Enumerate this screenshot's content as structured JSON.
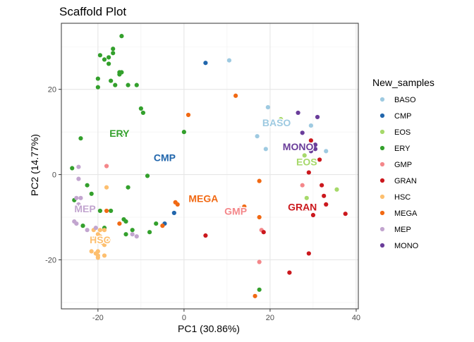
{
  "chart_data": {
    "type": "scatter",
    "title": "Scaffold Plot",
    "xlabel": "PC1 (30.86%)",
    "ylabel": "PC2 (14.77%)",
    "xlim": [
      -28.5,
      40.5
    ],
    "ylim": [
      -31.5,
      35.5
    ],
    "x_ticks": [
      -20,
      0,
      20,
      40
    ],
    "y_ticks": [
      -20,
      0,
      20
    ],
    "grid": true,
    "legend_title": "New_samples",
    "legend_position": "right",
    "series": [
      {
        "name": "BASO",
        "color": "#9ECAE1",
        "label_pos": [
          21.5,
          12
        ],
        "points": [
          [
            10.5,
            26.8
          ],
          [
            19.5,
            15.8
          ],
          [
            29.5,
            11.5
          ],
          [
            17,
            9
          ],
          [
            19,
            6
          ],
          [
            33,
            5.5
          ]
        ]
      },
      {
        "name": "CMP",
        "color": "#2166AC",
        "label_pos": [
          -4.5,
          3.8
        ],
        "points": [
          [
            5,
            26.2
          ],
          [
            -2.3,
            -9
          ],
          [
            -4.5,
            -11.5
          ]
        ]
      },
      {
        "name": "EOS",
        "color": "#A6D96A",
        "label_pos": [
          28.5,
          2.8
        ],
        "points": [
          [
            22.5,
            13
          ],
          [
            28,
            4.5
          ],
          [
            35.5,
            -3.5
          ],
          [
            28.5,
            -5.5
          ]
        ]
      },
      {
        "name": "ERY",
        "color": "#33A02C",
        "label_pos": [
          -15,
          9.5
        ],
        "points": [
          [
            -14.5,
            32.5
          ],
          [
            -16.5,
            29.5
          ],
          [
            -16.5,
            28.5
          ],
          [
            -19.5,
            28
          ],
          [
            -17.5,
            27.5
          ],
          [
            -18.5,
            27
          ],
          [
            -17.5,
            26
          ],
          [
            -15,
            24
          ],
          [
            -14.5,
            24
          ],
          [
            -15,
            23.5
          ],
          [
            -20,
            22.5
          ],
          [
            -17,
            22
          ],
          [
            -20,
            20.5
          ],
          [
            -16,
            21
          ],
          [
            -13,
            21
          ],
          [
            -11,
            21
          ],
          [
            -10,
            15.5
          ],
          [
            -9.5,
            14.5
          ],
          [
            -15.5,
            9.8
          ],
          [
            -14.5,
            9.2
          ],
          [
            0,
            10
          ],
          [
            -24,
            8.5
          ],
          [
            -26,
            1.5
          ],
          [
            -22.5,
            -2.5
          ],
          [
            -8.5,
            -0.3
          ],
          [
            -13,
            -3
          ],
          [
            -21.5,
            -4.5
          ],
          [
            -25.5,
            -6
          ],
          [
            -19.5,
            -8.5
          ],
          [
            -17,
            -8.5
          ],
          [
            -14,
            -10.5
          ],
          [
            -13.5,
            -11
          ],
          [
            -13.5,
            -14
          ],
          [
            -6.5,
            -11.5
          ],
          [
            -8,
            -13.5
          ],
          [
            -12,
            -13
          ],
          [
            -23.5,
            -12
          ],
          [
            -18.5,
            -12.5
          ],
          [
            17.5,
            -27
          ]
        ]
      },
      {
        "name": "GMP",
        "color": "#F4878A",
        "label_pos": [
          12,
          -8.8
        ],
        "points": [
          [
            -18,
            2
          ],
          [
            13,
            -8
          ],
          [
            18,
            -13
          ],
          [
            17.5,
            -20.5
          ],
          [
            27.5,
            -2.5
          ]
        ]
      },
      {
        "name": "GRAN",
        "color": "#CB181D",
        "label_pos": [
          27.5,
          -7.8
        ],
        "points": [
          [
            29.5,
            8
          ],
          [
            31.5,
            3.5
          ],
          [
            29,
            0.5
          ],
          [
            32,
            -2.5
          ],
          [
            32.5,
            -5
          ],
          [
            33,
            -7
          ],
          [
            25,
            -7.5
          ],
          [
            28,
            -8
          ],
          [
            37.5,
            -9.2
          ],
          [
            30,
            -9.5
          ],
          [
            5,
            -14.3
          ],
          [
            18.5,
            -13.5
          ],
          [
            29,
            -18.5
          ],
          [
            24.5,
            -23
          ]
        ]
      },
      {
        "name": "HSC",
        "color": "#FDBF6F",
        "label_pos": [
          -19.5,
          -15.5
        ],
        "points": [
          [
            -18,
            -3
          ],
          [
            -21,
            -13
          ],
          [
            -19.5,
            -13
          ],
          [
            -18.5,
            -13
          ],
          [
            -20,
            -14
          ],
          [
            -19.5,
            -14.5
          ],
          [
            -21,
            -15
          ],
          [
            -17.5,
            -15.5
          ],
          [
            -19.5,
            -15.5
          ],
          [
            -19,
            -16
          ],
          [
            -18.5,
            -16.5
          ],
          [
            -21.5,
            -18
          ],
          [
            -20,
            -18
          ],
          [
            -20.5,
            -18.5
          ],
          [
            -20,
            -19
          ],
          [
            -18.5,
            -19
          ],
          [
            -20,
            -19.5
          ]
        ]
      },
      {
        "name": "MEGA",
        "color": "#F16913",
        "label_pos": [
          4.5,
          -5.8
        ],
        "points": [
          [
            12,
            18.5
          ],
          [
            1,
            14
          ],
          [
            -1.5,
            -7
          ],
          [
            -2,
            -6.5
          ],
          [
            -18,
            -8.5
          ],
          [
            -15,
            -11.5
          ],
          [
            -5,
            -12
          ],
          [
            17.5,
            -1.5
          ],
          [
            14,
            -7.5
          ],
          [
            17.5,
            -10
          ],
          [
            16.5,
            -28.5
          ]
        ]
      },
      {
        "name": "MEP",
        "color": "#C2A5CF",
        "label_pos": [
          -23,
          -8.2
        ],
        "points": [
          [
            -24.5,
            1.8
          ],
          [
            -24.5,
            -1
          ],
          [
            -25,
            -5.5
          ],
          [
            -24,
            -5.5
          ],
          [
            -24.5,
            -7
          ],
          [
            -25.5,
            -11
          ],
          [
            -25,
            -11.5
          ],
          [
            -22.5,
            -13
          ],
          [
            -12,
            -14
          ],
          [
            -11,
            -14.5
          ],
          [
            -20.5,
            -12.5
          ]
        ]
      },
      {
        "name": "MONO",
        "color": "#6A3D9A",
        "label_pos": [
          26.5,
          6.3
        ],
        "points": [
          [
            26.5,
            14.5
          ],
          [
            31,
            13.5
          ],
          [
            27.5,
            9.8
          ],
          [
            30.5,
            7
          ],
          [
            30,
            6.5
          ],
          [
            30.5,
            6
          ],
          [
            29.5,
            5.5
          ]
        ]
      }
    ]
  }
}
